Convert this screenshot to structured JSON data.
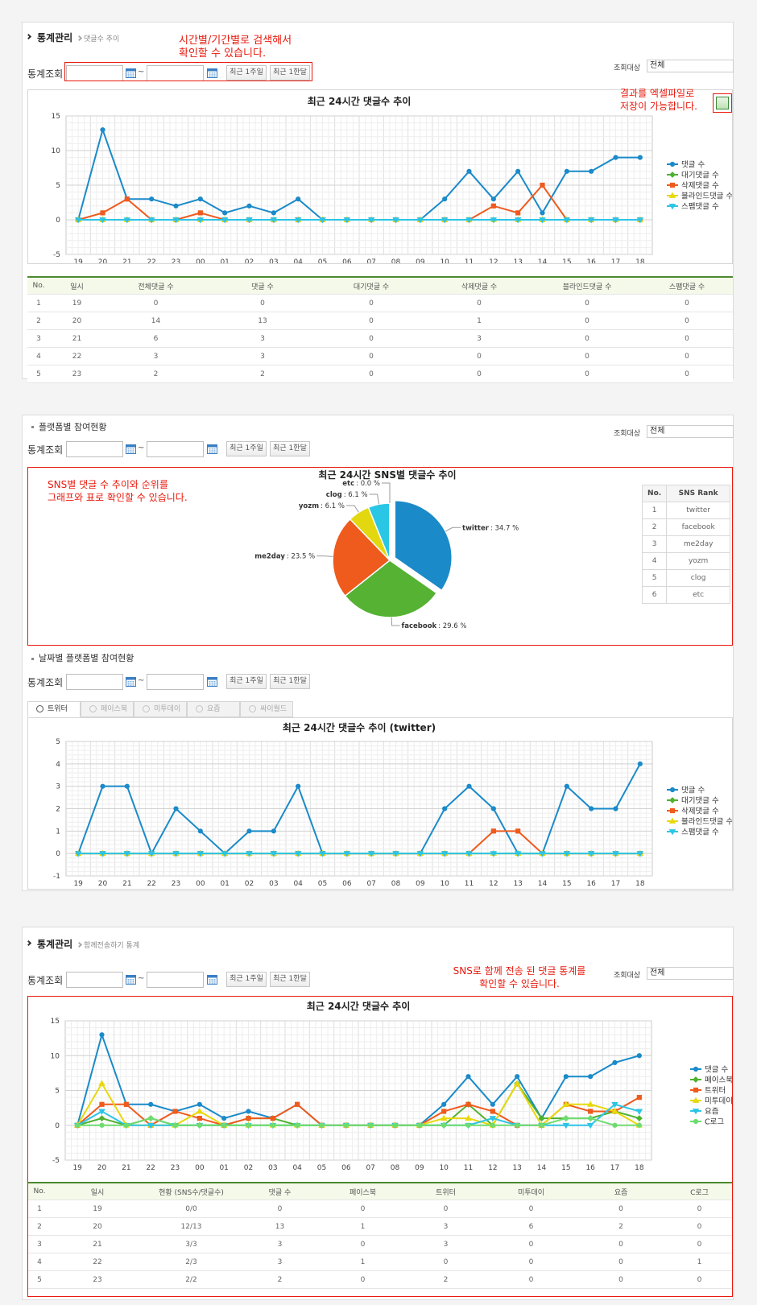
{
  "panel1": {
    "title": "통계관리",
    "sub": "댓글수 추이",
    "note": [
      "시간별/기간별로 검색해서",
      "확인할 수 있습니다."
    ],
    "search": {
      "label": "통계조회",
      "sep": "~",
      "week": "최근 1주일",
      "month": "최근 1한달",
      "target_label": "조회대상",
      "target": "전체"
    },
    "excel_note": [
      "결과를 엑셀파일로",
      "저장이 가능합니다."
    ],
    "chart": {
      "type": "line",
      "title": "최근 24시간 댓글수 추이",
      "categories": [
        "19",
        "20",
        "21",
        "22",
        "23",
        "00",
        "01",
        "02",
        "03",
        "04",
        "05",
        "06",
        "07",
        "08",
        "09",
        "10",
        "11",
        "12",
        "13",
        "14",
        "15",
        "16",
        "17",
        "18"
      ],
      "series": [
        {
          "name": "댓글 수",
          "color": "#1a8ac9",
          "marker": "circle",
          "values": [
            0,
            13,
            3,
            3,
            2,
            3,
            1,
            2,
            1,
            3,
            0,
            0,
            0,
            0,
            0,
            3,
            7,
            3,
            7,
            1,
            7,
            7,
            9,
            9
          ]
        },
        {
          "name": "대기댓글 수",
          "color": "#4fb130",
          "marker": "diamond",
          "values": [
            0,
            0,
            0,
            0,
            0,
            0,
            0,
            0,
            0,
            0,
            0,
            0,
            0,
            0,
            0,
            0,
            0,
            0,
            0,
            0,
            0,
            0,
            0,
            0
          ]
        },
        {
          "name": "삭제댓글 수",
          "color": "#ef5a1d",
          "marker": "square",
          "values": [
            0,
            1,
            3,
            0,
            0,
            1,
            0,
            0,
            0,
            0,
            0,
            0,
            0,
            0,
            0,
            0,
            0,
            2,
            1,
            5,
            0,
            0,
            0,
            0
          ]
        },
        {
          "name": "블라인드댓글 수",
          "color": "#e8d80c",
          "marker": "triangle",
          "values": [
            0,
            0,
            0,
            0,
            0,
            0,
            0,
            0,
            0,
            0,
            0,
            0,
            0,
            0,
            0,
            0,
            0,
            0,
            0,
            0,
            0,
            0,
            0,
            0
          ]
        },
        {
          "name": "스팸댓글 수",
          "color": "#2cc4e6",
          "marker": "triangle-down",
          "values": [
            0,
            0,
            0,
            0,
            0,
            0,
            0,
            0,
            0,
            0,
            0,
            0,
            0,
            0,
            0,
            0,
            0,
            0,
            0,
            0,
            0,
            0,
            0,
            0
          ]
        }
      ],
      "ylim": [
        -5,
        15
      ],
      "yticks": [
        -5,
        0,
        5,
        10,
        15
      ],
      "grid": true
    },
    "table": {
      "header": [
        "No.",
        "일시",
        "전체댓글 수",
        "댓글 수",
        "대기댓글 수",
        "삭제댓글 수",
        "블라인드댓글 수",
        "스팸댓글 수"
      ],
      "rows": [
        [
          "1",
          "19",
          "0",
          "0",
          "0",
          "0",
          "0",
          "0"
        ],
        [
          "2",
          "20",
          "14",
          "13",
          "0",
          "1",
          "0",
          "0"
        ],
        [
          "3",
          "21",
          "6",
          "3",
          "0",
          "3",
          "0",
          "0"
        ],
        [
          "4",
          "22",
          "3",
          "3",
          "0",
          "0",
          "0",
          "0"
        ],
        [
          "5",
          "23",
          "2",
          "2",
          "0",
          "0",
          "0",
          "0"
        ]
      ]
    }
  },
  "panel2": {
    "heading": "플랫폼별 참여현황",
    "search": {
      "label": "통계조회",
      "sep": "~",
      "week": "최근 1주일",
      "month": "최근 1한달",
      "target_label": "조회대상",
      "target": "전체"
    },
    "note": [
      "SNS별 댓글 수 추이와 순위를",
      "그래프와 표로 확인할 수 있습니다."
    ],
    "pie": {
      "type": "pie",
      "title": "최근 24시간 SNS별 댓글수 추이",
      "categories": [
        "twitter",
        "facebook",
        "me2day",
        "yozm",
        "clog",
        "etc"
      ],
      "values": [
        34.7,
        29.6,
        23.5,
        6.1,
        6.1,
        0.0
      ],
      "value_labels": [
        ": 34.7 %",
        ": 29.6 %",
        ": 23.5 %",
        ": 6.1 %",
        ": 6.1 %",
        ": 0.0 %"
      ],
      "colors": [
        "#1a8ac9",
        "#55b232",
        "#ef5a1d",
        "#e3d80f",
        "#2ac6e6",
        "#9a9a9a"
      ],
      "exploded": "twitter"
    },
    "rank": {
      "header": [
        "No.",
        "SNS Rank"
      ],
      "rows": [
        [
          "1",
          "twitter"
        ],
        [
          "2",
          "facebook"
        ],
        [
          "3",
          "me2day"
        ],
        [
          "4",
          "yozm"
        ],
        [
          "5",
          "clog"
        ],
        [
          "6",
          "etc"
        ]
      ]
    },
    "heading2": "날짜별 플랫폼별 참여현황",
    "search2": {
      "label": "통계조회",
      "sep": "~",
      "week": "최근 1주일",
      "month": "최근 1한달"
    },
    "tabs": [
      "트위터",
      "페이스북",
      "미투데이",
      "요즘",
      "싸이월드"
    ],
    "chart": {
      "type": "line",
      "title": "최근 24시간 댓글수 추이 (twitter)",
      "categories": [
        "19",
        "20",
        "21",
        "22",
        "23",
        "00",
        "01",
        "02",
        "03",
        "04",
        "05",
        "06",
        "07",
        "08",
        "09",
        "10",
        "11",
        "12",
        "13",
        "14",
        "15",
        "16",
        "17",
        "18"
      ],
      "series": [
        {
          "name": "댓글 수",
          "color": "#1a8ac9",
          "marker": "circle",
          "values": [
            0,
            3,
            3,
            0,
            2,
            1,
            0,
            1,
            1,
            3,
            0,
            0,
            0,
            0,
            0,
            2,
            3,
            2,
            0,
            0,
            3,
            2,
            2,
            4
          ]
        },
        {
          "name": "대기댓글 수",
          "color": "#4fb130",
          "marker": "diamond",
          "values": [
            0,
            0,
            0,
            0,
            0,
            0,
            0,
            0,
            0,
            0,
            0,
            0,
            0,
            0,
            0,
            0,
            0,
            0,
            0,
            0,
            0,
            0,
            0,
            0
          ]
        },
        {
          "name": "삭제댓글 수",
          "color": "#ef5a1d",
          "marker": "square",
          "values": [
            0,
            0,
            0,
            0,
            0,
            0,
            0,
            0,
            0,
            0,
            0,
            0,
            0,
            0,
            0,
            0,
            0,
            1,
            1,
            0,
            0,
            0,
            0,
            0
          ]
        },
        {
          "name": "블라인드댓글 수",
          "color": "#e8d80c",
          "marker": "triangle",
          "values": [
            0,
            0,
            0,
            0,
            0,
            0,
            0,
            0,
            0,
            0,
            0,
            0,
            0,
            0,
            0,
            0,
            0,
            0,
            0,
            0,
            0,
            0,
            0,
            0
          ]
        },
        {
          "name": "스팸댓글 수",
          "color": "#2cc4e6",
          "marker": "triangle-down",
          "values": [
            0,
            0,
            0,
            0,
            0,
            0,
            0,
            0,
            0,
            0,
            0,
            0,
            0,
            0,
            0,
            0,
            0,
            0,
            0,
            0,
            0,
            0,
            0,
            0
          ]
        }
      ],
      "ylim": [
        -1,
        5
      ],
      "yticks": [
        -1,
        0,
        1,
        2,
        3,
        4,
        5
      ],
      "grid": true
    }
  },
  "panel3": {
    "title": "통계관리",
    "sub": "함께전송하기 통계",
    "search": {
      "label": "통계조회",
      "sep": "~",
      "week": "최근 1주일",
      "month": "최근 1한달",
      "target_label": "조회대상",
      "target": "전체"
    },
    "note": [
      "SNS로 함께 전송 된 댓글 통계를",
      "확인할 수 있습니다."
    ],
    "chart": {
      "type": "line",
      "title": "최근 24시간 댓글수 추이",
      "categories": [
        "19",
        "20",
        "21",
        "22",
        "23",
        "00",
        "01",
        "02",
        "03",
        "04",
        "05",
        "06",
        "07",
        "08",
        "09",
        "10",
        "11",
        "12",
        "13",
        "14",
        "15",
        "16",
        "17",
        "18"
      ],
      "series": [
        {
          "name": "댓글 수",
          "color": "#1a8ac9",
          "marker": "circle",
          "values": [
            0,
            13,
            3,
            3,
            2,
            3,
            1,
            2,
            1,
            3,
            0,
            0,
            0,
            0,
            0,
            3,
            7,
            3,
            7,
            1,
            7,
            7,
            9,
            10
          ]
        },
        {
          "name": "페이스북",
          "color": "#4fb130",
          "marker": "diamond",
          "values": [
            0,
            1,
            0,
            1,
            0,
            0,
            0,
            1,
            1,
            0,
            0,
            0,
            0,
            0,
            0,
            0,
            3,
            0,
            6,
            1,
            1,
            1,
            2,
            1
          ]
        },
        {
          "name": "트위터",
          "color": "#ef5a1d",
          "marker": "square",
          "values": [
            0,
            3,
            3,
            0,
            2,
            1,
            0,
            1,
            1,
            3,
            0,
            0,
            0,
            0,
            0,
            2,
            3,
            2,
            0,
            0,
            3,
            2,
            2,
            4
          ]
        },
        {
          "name": "미투데이",
          "color": "#e8d80c",
          "marker": "triangle",
          "values": [
            0,
            6,
            0,
            0,
            0,
            2,
            0,
            0,
            0,
            0,
            0,
            0,
            0,
            0,
            0,
            1,
            1,
            0,
            6,
            0,
            3,
            3,
            2,
            0
          ]
        },
        {
          "name": "요즘",
          "color": "#2cc4e6",
          "marker": "triangle-down",
          "values": [
            0,
            2,
            0,
            0,
            0,
            0,
            0,
            0,
            0,
            0,
            0,
            0,
            0,
            0,
            0,
            0,
            0,
            1,
            0,
            0,
            0,
            0,
            3,
            2
          ]
        },
        {
          "name": "C로그",
          "color": "#6fdc6f",
          "marker": "circle",
          "values": [
            0,
            0,
            0,
            1,
            0,
            0,
            0,
            0,
            0,
            0,
            0,
            0,
            0,
            0,
            0,
            0,
            0,
            0,
            0,
            0,
            1,
            1,
            0,
            0
          ]
        }
      ],
      "ylim": [
        -5,
        15
      ],
      "yticks": [
        -5,
        0,
        5,
        10,
        15
      ],
      "grid": true
    },
    "table": {
      "header": [
        "No.",
        "일시",
        "현황 (SNS수/댓글수)",
        "댓글 수",
        "페이스북",
        "트위터",
        "미투데이",
        "요즘",
        "C로그"
      ],
      "rows": [
        [
          "1",
          "19",
          "0/0",
          "0",
          "0",
          "0",
          "0",
          "0",
          "0"
        ],
        [
          "2",
          "20",
          "12/13",
          "13",
          "1",
          "3",
          "6",
          "2",
          "0"
        ],
        [
          "3",
          "21",
          "3/3",
          "3",
          "0",
          "3",
          "0",
          "0",
          "0"
        ],
        [
          "4",
          "22",
          "2/3",
          "3",
          "1",
          "0",
          "0",
          "0",
          "1"
        ],
        [
          "5",
          "23",
          "2/2",
          "2",
          "0",
          "2",
          "0",
          "0",
          "0"
        ]
      ]
    }
  }
}
